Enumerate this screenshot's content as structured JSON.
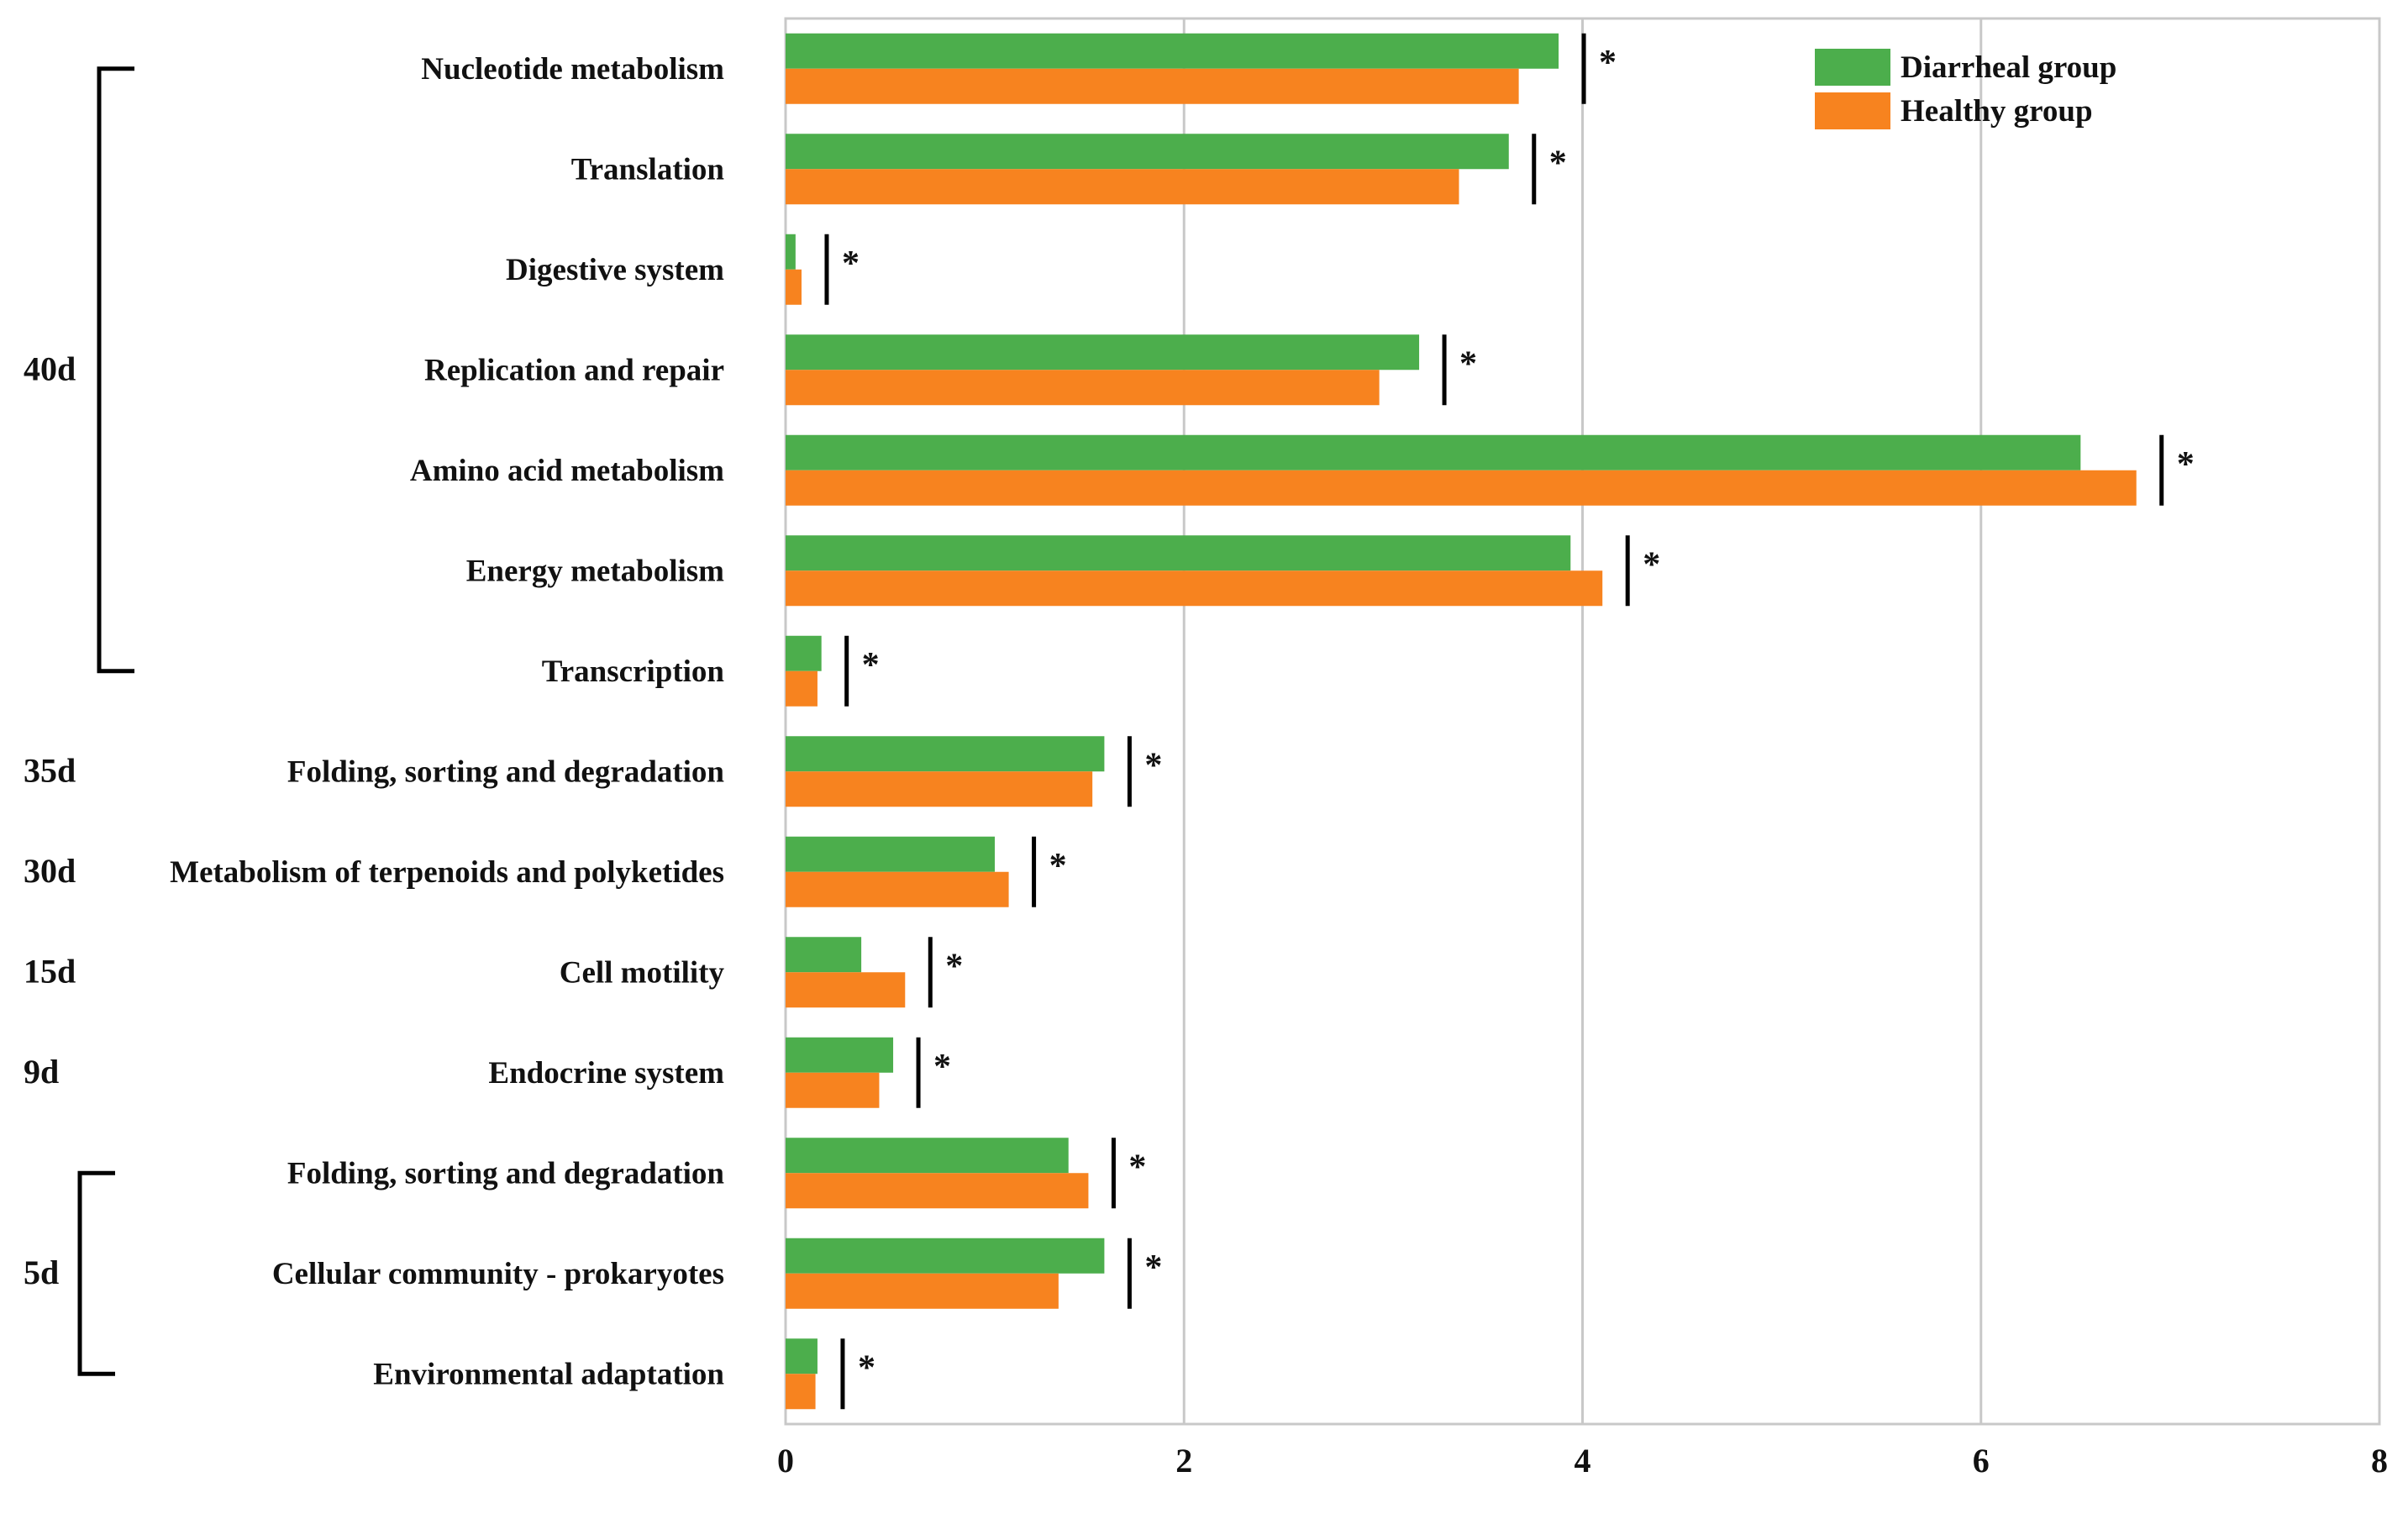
{
  "chart_data": {
    "type": "bar",
    "orientation": "horizontal",
    "title": "",
    "xlabel": "",
    "ylabel": "",
    "xlim": [
      0,
      8
    ],
    "xticks": [
      "0",
      "2",
      "4",
      "6",
      "8"
    ],
    "grid": true,
    "legend_position": "top-right",
    "categories": [
      "Nucleotide metabolism",
      "Translation",
      "Digestive system",
      "Replication and repair",
      "Amino acid metabolism",
      "Energy metabolism",
      "Transcription",
      "Folding, sorting and degradation",
      "Metabolism of terpenoids and polyketides",
      "Cell motility",
      "Endocrine system",
      "Folding, sorting and degradation",
      "Cellular community - prokaryotes",
      "Environmental adaptation"
    ],
    "series": [
      {
        "name": "Diarrheal group",
        "color": "#4cae4c",
        "values": [
          3.88,
          3.63,
          0.05,
          3.18,
          6.5,
          3.94,
          0.18,
          1.6,
          1.05,
          0.38,
          0.54,
          1.42,
          1.6,
          0.16
        ]
      },
      {
        "name": "Healthy group",
        "color": "#f7831f",
        "values": [
          3.68,
          3.38,
          0.08,
          2.98,
          6.78,
          4.1,
          0.16,
          1.54,
          1.12,
          0.6,
          0.47,
          1.52,
          1.37,
          0.15
        ]
      }
    ],
    "significance": [
      "*",
      "*",
      "*",
      "*",
      "*",
      "*",
      "*",
      "*",
      "*",
      "*",
      "*",
      "*",
      "*",
      "*"
    ],
    "groups": [
      {
        "label": "40d",
        "from": 0,
        "to": 6,
        "bracket": true
      },
      {
        "label": "35d",
        "from": 7,
        "to": 7,
        "bracket": false
      },
      {
        "label": "30d",
        "from": 8,
        "to": 8,
        "bracket": false
      },
      {
        "label": "15d",
        "from": 9,
        "to": 9,
        "bracket": false
      },
      {
        "label": "9d",
        "from": 10,
        "to": 10,
        "bracket": false
      },
      {
        "label": "5d",
        "from": 11,
        "to": 13,
        "bracket": true
      }
    ]
  }
}
